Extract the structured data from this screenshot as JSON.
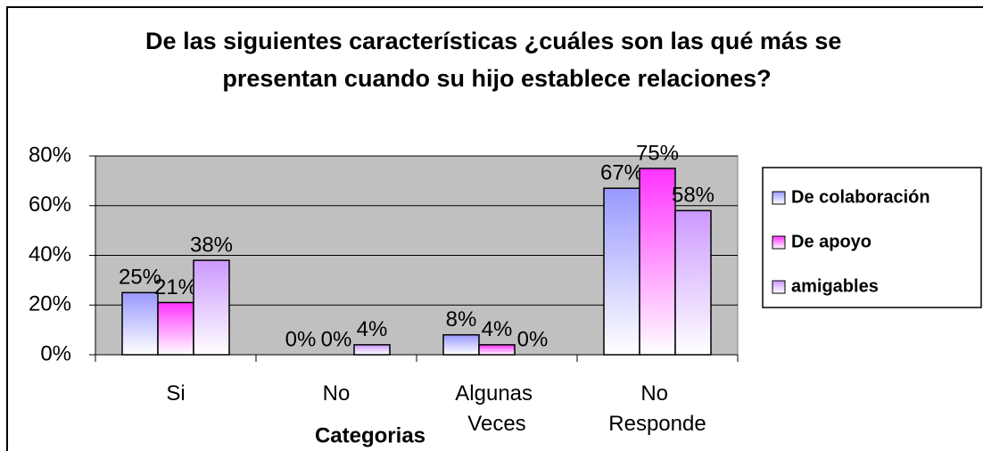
{
  "chart_data": {
    "type": "bar",
    "title": "De las siguientes características ¿cuáles son las qué más se presentan cuando su hijo establece relaciones?",
    "x_label": "Categorias",
    "categories": [
      "Si",
      "No",
      "Algunas Veces",
      "No Responde"
    ],
    "series": [
      {
        "name": "De colaboración",
        "color": "#9999ff",
        "values": [
          25,
          0,
          8,
          67
        ],
        "value_labels": [
          "25%",
          "0%",
          "8%",
          "67%"
        ]
      },
      {
        "name": "De apoyo",
        "color": "#ff33ff",
        "values": [
          21,
          0,
          4,
          75
        ],
        "value_labels": [
          "21%",
          "0%",
          "4%",
          "75%"
        ]
      },
      {
        "name": "amigables",
        "color": "#cc99ff",
        "values": [
          38,
          4,
          0,
          58
        ],
        "value_labels": [
          "38%",
          "4%",
          "0%",
          "58%"
        ]
      }
    ],
    "ylim": [
      0,
      80
    ],
    "yticks": [
      {
        "value": 0,
        "label": "0%"
      },
      {
        "value": 20,
        "label": "20%"
      },
      {
        "value": 40,
        "label": "40%"
      },
      {
        "value": 60,
        "label": "60%"
      },
      {
        "value": 80,
        "label": "80%"
      }
    ],
    "grid": true,
    "legend": "right"
  }
}
